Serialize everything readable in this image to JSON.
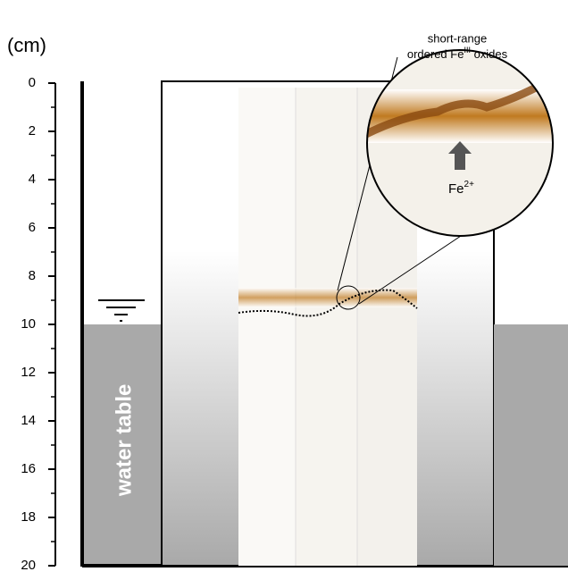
{
  "axis": {
    "unit": "(cm)",
    "ticks": [
      0,
      2,
      4,
      6,
      8,
      10,
      12,
      14,
      16,
      18,
      20
    ]
  },
  "water_table": {
    "label": "water table"
  },
  "magnifier": {
    "label_line1": "short-range",
    "label_line2_a": "ordered Fe",
    "label_line2_sup": "III",
    "label_line2_b": " oxides",
    "ion": "Fe",
    "ion_sup": "2+"
  }
}
